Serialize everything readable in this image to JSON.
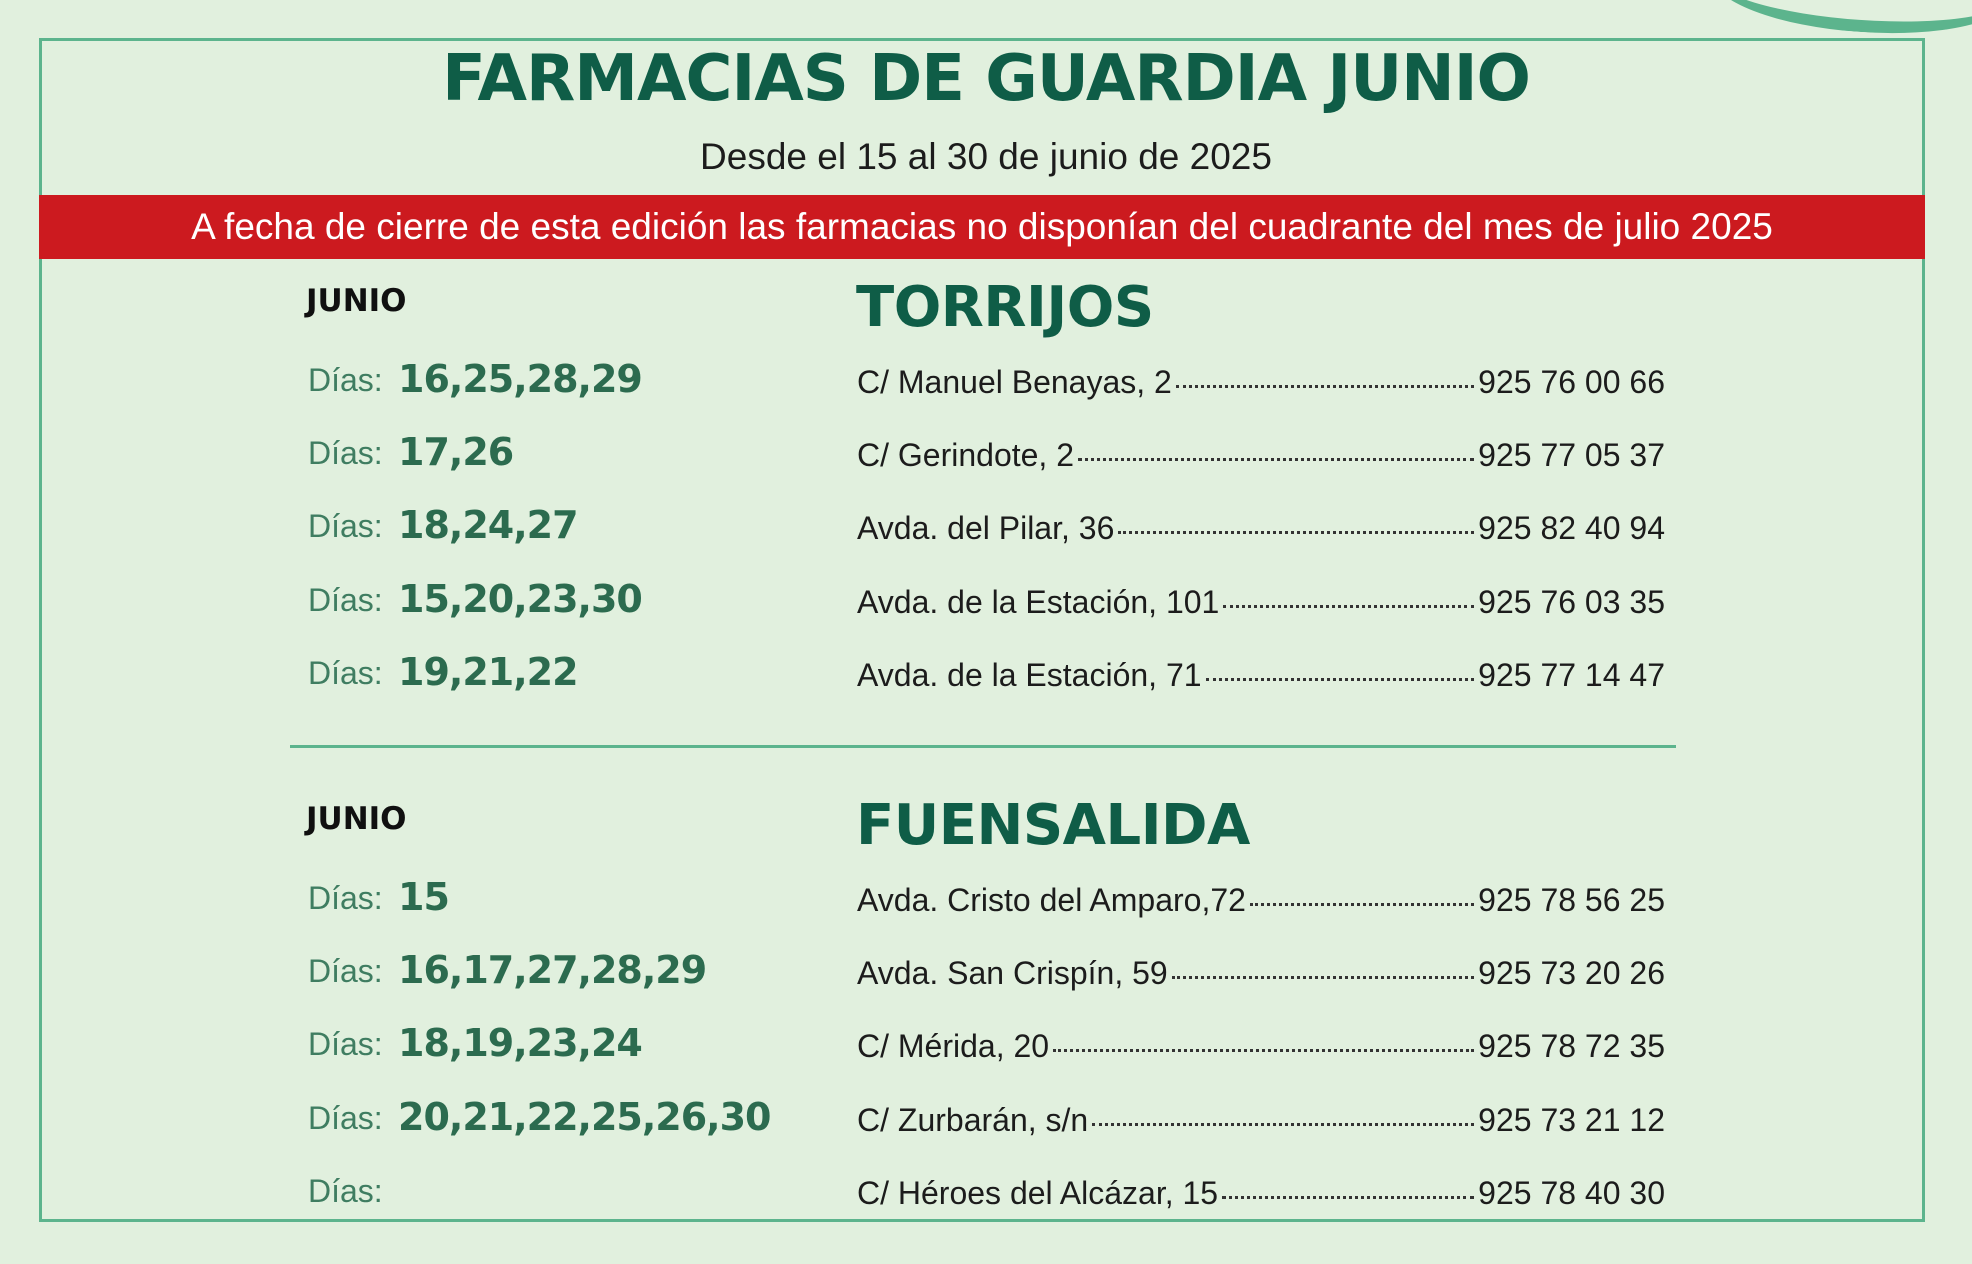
{
  "header": {
    "title": "FARMACIAS DE GUARDIA JUNIO",
    "subtitle": "Desde el 15 al 30 de junio de 2025",
    "notice": "A fecha de cierre de esta edición las farmacias no disponían del cuadrante del mes de julio 2025"
  },
  "colors": {
    "background": "#e1f0de",
    "accent_green": "#0f5d47",
    "border_green": "#5cb48d",
    "notice_red": "#cc1a1f"
  },
  "sections": [
    {
      "month": "JUNIO",
      "town": "TORRIJOS",
      "rows": [
        {
          "dias_label": "Días:",
          "days": "16,25,28,29",
          "address": "C/ Manuel Benayas, 2",
          "phone": "925 76 00 66"
        },
        {
          "dias_label": "Días:",
          "days": "17,26",
          "address": "C/ Gerindote, 2",
          "phone": "925 77 05 37"
        },
        {
          "dias_label": "Días:",
          "days": "18,24,27",
          "address": "Avda. del Pilar, 36",
          "phone": "925 82 40 94"
        },
        {
          "dias_label": "Días:",
          "days": "15,20,23,30",
          "address": "Avda. de la Estación, 101",
          "phone": "925 76 03 35"
        },
        {
          "dias_label": "Días:",
          "days": "19,21,22",
          "address": "Avda. de la Estación, 71",
          "phone": "925 77 14 47"
        }
      ]
    },
    {
      "month": "JUNIO",
      "town": "FUENSALIDA",
      "rows": [
        {
          "dias_label": "Días:",
          "days": "15",
          "address": "Avda. Cristo del Amparo,72",
          "phone": "925 78 56 25"
        },
        {
          "dias_label": "Días:",
          "days": "16,17,27,28,29",
          "address": "Avda. San Crispín, 59",
          "phone": "925 73 20 26"
        },
        {
          "dias_label": "Días:",
          "days": "18,19,23,24",
          "address": "C/ Mérida, 20",
          "phone": "925 78 72 35"
        },
        {
          "dias_label": "Días:",
          "days": "20,21,22,25,26,30",
          "address": "C/ Zurbarán, s/n",
          "phone": "925 73 21 12"
        },
        {
          "dias_label": "Días:",
          "days": "",
          "address": "C/ Héroes del Alcázar, 15",
          "phone": "925 78 40 30"
        }
      ]
    }
  ]
}
